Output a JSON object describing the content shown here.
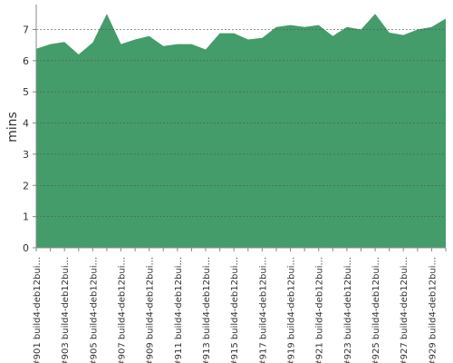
{
  "chart_data": {
    "type": "area",
    "y_label": "mins",
    "color": "#449c6a",
    "grid": true,
    "categories": [
      "#901 build4-deb12bui...",
      null,
      "#903 build4-deb12bui...",
      null,
      "#905 build4-deb12bui...",
      null,
      "#907 build4-deb12bui...",
      null,
      "#909 build4-deb12bui...",
      null,
      "#911 build4-deb12bui...",
      null,
      "#913 build4-deb12bui...",
      null,
      "#915 build4-deb12bui...",
      null,
      "#917 build4-deb12bui...",
      null,
      "#919 build4-deb12bui...",
      null,
      "#921 build4-deb12bui...",
      null,
      "#923 build4-deb12bui...",
      null,
      "#925 build4-deb12bui...",
      null,
      "#927 build4-deb12bui...",
      null,
      "#929 build4-deb12bui...",
      null
    ],
    "values": [
      6.38,
      6.53,
      6.6,
      6.2,
      6.58,
      7.5,
      6.53,
      6.68,
      6.79,
      6.47,
      6.53,
      6.53,
      6.36,
      6.88,
      6.88,
      6.68,
      6.73,
      7.08,
      7.14,
      7.08,
      7.14,
      6.79,
      7.08,
      7.0,
      7.5,
      6.9,
      6.82,
      7.0,
      7.08,
      7.35
    ],
    "ylim": [
      0,
      7.8
    ],
    "yticks": [
      0,
      1,
      2,
      3,
      4,
      5,
      6,
      7
    ]
  }
}
